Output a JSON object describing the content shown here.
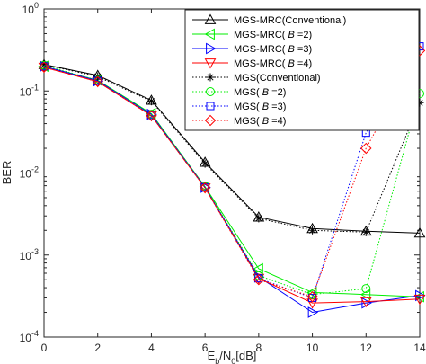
{
  "chart_data": {
    "type": "line",
    "xlabel": "E_b/N_0[dB]",
    "ylabel": "BER",
    "xlim": [
      0,
      14
    ],
    "ylim": [
      0.0001,
      1
    ],
    "yscale": "log",
    "x_ticks": [
      "0",
      "2",
      "4",
      "6",
      "8",
      "10",
      "12",
      "14"
    ],
    "y_ticks": [
      {
        "value": 1,
        "base": "10",
        "exp": "0"
      },
      {
        "value": 0.1,
        "base": "10",
        "exp": "-1"
      },
      {
        "value": 0.01,
        "base": "10",
        "exp": "-2"
      },
      {
        "value": 0.001,
        "base": "10",
        "exp": "-3"
      },
      {
        "value": 0.0001,
        "base": "10",
        "exp": "-4"
      }
    ],
    "grid": false,
    "legend_position": "top-right",
    "x": [
      0,
      2,
      4,
      6,
      8,
      10,
      12,
      14
    ],
    "series": [
      {
        "name": "MGS-MRC(Conventional)",
        "color": "#000000",
        "dash": "solid",
        "marker": "triangle-up",
        "values": [
          0.21,
          0.155,
          0.077,
          0.0135,
          0.0029,
          0.0021,
          0.00195,
          0.00185
        ]
      },
      {
        "name": "MGS-MRC( B =2)",
        "color": "#00ee00",
        "dash": "solid",
        "marker": "triangle-left",
        "values": [
          0.2,
          0.135,
          0.053,
          0.0068,
          0.00068,
          0.00035,
          0.00033,
          0.00031
        ]
      },
      {
        "name": "MGS-MRC( B =3)",
        "color": "#0000ff",
        "dash": "solid",
        "marker": "triangle-right",
        "values": [
          0.2,
          0.133,
          0.052,
          0.0067,
          0.00054,
          0.0002,
          0.00026,
          0.00032
        ]
      },
      {
        "name": "MGS-MRC( B =4)",
        "color": "#ff0000",
        "dash": "solid",
        "marker": "triangle-down",
        "values": [
          0.195,
          0.13,
          0.05,
          0.0066,
          0.00052,
          0.00026,
          0.00027,
          0.00029
        ]
      },
      {
        "name": "MGS(Conventional)",
        "color": "#000000",
        "dash": "dotted",
        "marker": "asterisk",
        "values": [
          0.21,
          0.15,
          0.075,
          0.013,
          0.0028,
          0.002,
          0.0019,
          0.072
        ]
      },
      {
        "name": "MGS( B =2)",
        "color": "#00ee00",
        "dash": "dotted",
        "marker": "circle",
        "values": [
          0.205,
          0.135,
          0.052,
          0.0068,
          0.00056,
          0.00033,
          0.00039,
          0.093
        ]
      },
      {
        "name": "MGS( B =3)",
        "color": "#0000ff",
        "dash": "dotted",
        "marker": "square",
        "values": [
          0.2,
          0.133,
          0.051,
          0.0067,
          0.00052,
          0.0003,
          0.031,
          0.35
        ]
      },
      {
        "name": "MGS( B =4)",
        "color": "#ff0000",
        "dash": "dotted",
        "marker": "diamond",
        "values": [
          0.195,
          0.13,
          0.05,
          0.0066,
          0.0005,
          0.00031,
          0.02,
          0.31
        ]
      }
    ],
    "legend_labels": [
      {
        "prefix": "MGS-MRC(Conventional)",
        "var": "",
        "suffix": ""
      },
      {
        "prefix": "MGS-MRC( ",
        "var": "B",
        "suffix": " =2)"
      },
      {
        "prefix": "MGS-MRC( ",
        "var": "B",
        "suffix": " =3)"
      },
      {
        "prefix": "MGS-MRC( ",
        "var": "B",
        "suffix": " =4)"
      },
      {
        "prefix": "MGS(Conventional)",
        "var": "",
        "suffix": ""
      },
      {
        "prefix": "MGS( ",
        "var": "B",
        "suffix": " =2)"
      },
      {
        "prefix": "MGS( ",
        "var": "B",
        "suffix": " =3)"
      },
      {
        "prefix": "MGS( ",
        "var": "B",
        "suffix": " =4)"
      }
    ]
  }
}
